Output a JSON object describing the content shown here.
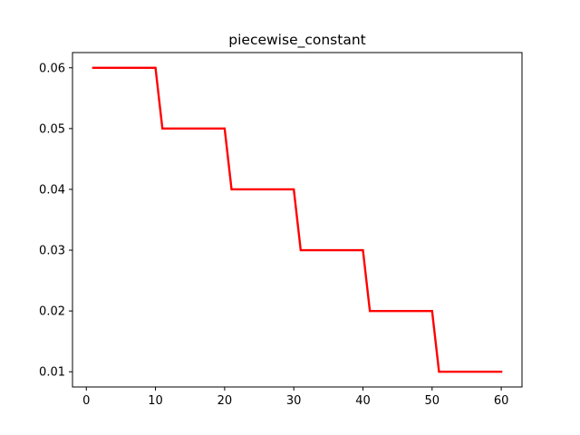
{
  "chart_data": {
    "type": "line",
    "title": "piecewise_constant",
    "xlabel": "",
    "ylabel": "",
    "xlim": [
      -2,
      63
    ],
    "ylim": [
      0.0075,
      0.0625
    ],
    "grid": false,
    "legend": "none",
    "x_ticks": [
      0,
      10,
      20,
      30,
      40,
      50,
      60
    ],
    "x_tick_labels": [
      "0",
      "10",
      "20",
      "30",
      "40",
      "50",
      "60"
    ],
    "y_ticks": [
      0.01,
      0.02,
      0.03,
      0.04,
      0.05,
      0.06
    ],
    "y_tick_labels": [
      "0.01",
      "0.02",
      "0.03",
      "0.04",
      "0.05",
      "0.06"
    ],
    "series": [
      {
        "color": "#ff0000",
        "x": [
          1,
          10,
          11,
          20,
          21,
          30,
          31,
          40,
          41,
          50,
          51,
          60
        ],
        "y": [
          0.06,
          0.06,
          0.05,
          0.05,
          0.04,
          0.04,
          0.03,
          0.03,
          0.02,
          0.02,
          0.01,
          0.01
        ]
      }
    ]
  }
}
